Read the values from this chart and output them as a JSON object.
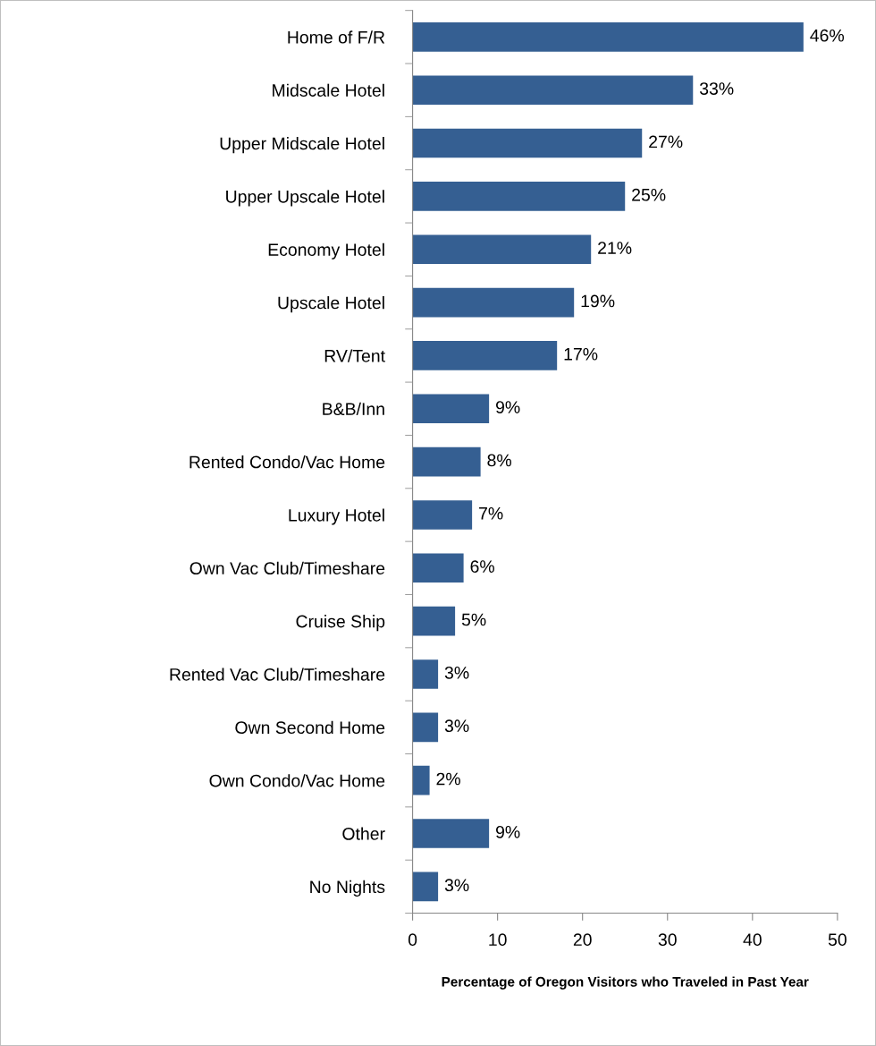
{
  "chart_data": {
    "type": "bar",
    "orientation": "horizontal",
    "categories": [
      "Home of F/R",
      "Midscale Hotel",
      "Upper Midscale Hotel",
      "Upper Upscale Hotel",
      "Economy Hotel",
      "Upscale Hotel",
      "RV/Tent",
      "B&B/Inn",
      "Rented Condo/Vac Home",
      "Luxury Hotel",
      "Own Vac Club/Timeshare",
      "Cruise Ship",
      "Rented Vac Club/Timeshare",
      "Own Second Home",
      "Own Condo/Vac Home",
      "Other",
      "No Nights"
    ],
    "values": [
      46,
      33,
      27,
      25,
      21,
      19,
      17,
      9,
      8,
      7,
      6,
      5,
      3,
      3,
      2,
      9,
      3
    ],
    "value_labels": [
      "46%",
      "33%",
      "27%",
      "25%",
      "21%",
      "19%",
      "17%",
      "9%",
      "8%",
      "7%",
      "6%",
      "5%",
      "3%",
      "3%",
      "2%",
      "9%",
      "3%"
    ],
    "color": "#355f92",
    "xlim": [
      0,
      50
    ],
    "xticks": [
      0,
      10,
      20,
      30,
      40,
      50
    ],
    "xlabel": "Percentage of Oregon Visitors who Traveled in Past Year",
    "grid": false,
    "legend": false
  }
}
